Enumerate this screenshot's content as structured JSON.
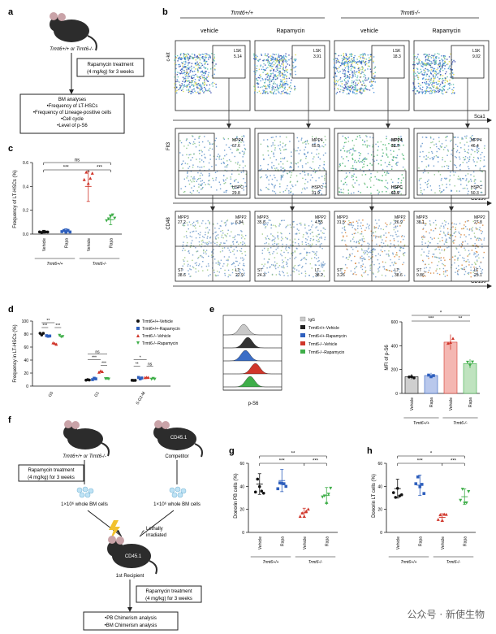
{
  "panel_labels": {
    "a": "a",
    "b": "b",
    "c": "c",
    "d": "d",
    "e": "e",
    "f": "f",
    "g": "g",
    "h": "h"
  },
  "panel_a": {
    "mouse_label": "Trmt6+/+ or Trmt6-/-",
    "treatment": [
      "Rapamycin treatment",
      "(4 mg/kg) for 3 weeks"
    ],
    "analyses": [
      "BM analyses",
      "•Frequency of LT-HSCs",
      "•Frequency of Lineage-positive cells",
      "•Cell cycle",
      "•Level of p-S6"
    ]
  },
  "panel_b": {
    "genotypes": [
      "Trmt6+/+",
      "Trmt6-/-"
    ],
    "conditions": [
      "vehicle",
      "Rapamycin",
      "vehicle",
      "Rapamycin"
    ],
    "row1": {
      "ylabel": "c-kit",
      "xlabel": "Sca1",
      "gate": "LSK",
      "values": [
        "5.14",
        "3.91",
        "18.3",
        "9.02"
      ]
    },
    "row2": {
      "ylabel": "Flt3",
      "xlabel": "CD150",
      "gates": [
        "MPP4",
        "HSPC"
      ],
      "mpp4": [
        "67.6",
        "65.9",
        "31.7",
        "46.4"
      ],
      "hspc": [
        "29.8",
        "31.9",
        "63.9",
        "50.3"
      ]
    },
    "row3": {
      "ylabel": "CD48",
      "xlabel": "CD150",
      "quad_names": [
        "MPP3",
        "MPP2",
        "ST",
        "LT"
      ],
      "values": [
        [
          "27.2",
          "6.34",
          "38.6",
          "22.9"
        ],
        [
          "35.8",
          "4.55",
          "24.3",
          "38.2"
        ],
        [
          "31.5",
          "26.9",
          "3.26",
          "38.6"
        ],
        [
          "38.1",
          "27.8",
          "9.86",
          "25.1"
        ]
      ]
    }
  },
  "colors": {
    "wt_vehicle": "#111111",
    "wt_rapa": "#2e5fbd",
    "ko_vehicle": "#d0362b",
    "ko_rapa": "#3fae49",
    "gray": "#b7b7b7"
  },
  "groups": {
    "wt": "Trmt6+/+",
    "ko": "Trmt6-/-",
    "vehicle": "Vehicle",
    "rapa": "Rapa"
  },
  "sig": {
    "ns": "ns",
    "s1": "*",
    "s2": "**",
    "s3": "***"
  },
  "panel_c": {
    "ylabel": "Frequency of LT-HSCs (%)",
    "chart_data": {
      "type": "scatter",
      "categories": [
        "Trmt6+/+ Vehicle",
        "Trmt6+/+ Rapa",
        "Trmt6-/- Vehicle",
        "Trmt6-/- Rapa"
      ],
      "means": [
        0.02,
        0.03,
        0.4,
        0.12
      ],
      "ylim": [
        0,
        0.6
      ],
      "yticks": [
        "0.0",
        "0.2",
        "0.4",
        "0.6"
      ]
    }
  },
  "panel_d": {
    "ylabel": "Frequency in LT-HSCs (%)",
    "legend": [
      "Trmt6+/+-Vehicle",
      "Trmt6+/+-Rapamycin",
      "Trmt6-/--Vehicle",
      "Trmt6-/--Rapamycin"
    ],
    "chart_data": {
      "type": "scatter",
      "categories": [
        "G0",
        "G1",
        "S-G2-M"
      ],
      "series": [
        {
          "name": "Trmt6+/+-Vehicle",
          "values": [
            80,
            10,
            10
          ]
        },
        {
          "name": "Trmt6+/+-Rapamycin",
          "values": [
            77,
            11,
            12
          ]
        },
        {
          "name": "Trmt6-/--Vehicle",
          "values": [
            65,
            22,
            13
          ]
        },
        {
          "name": "Trmt6-/--Rapamycin",
          "values": [
            77,
            11,
            12
          ]
        }
      ],
      "ylim": [
        0,
        100
      ],
      "yticks": [
        "0",
        "20",
        "40",
        "60",
        "80",
        "100"
      ]
    }
  },
  "panel_e": {
    "xlabel": "p-S6",
    "ylabel": "MFI of p-S6",
    "legend": [
      "IgG",
      "Trmt6+/+-Vehicle",
      "Trmt6+/+-Rapamycin",
      "Trmt6-/--Vehicle",
      "Trmt6-/--Rapamycin"
    ],
    "chart_data": {
      "type": "bar",
      "categories": [
        "Trmt6+/+ Vehicle",
        "Trmt6+/+ Rapa",
        "Trmt6-/- Vehicle",
        "Trmt6-/- Rapa"
      ],
      "values": [
        140,
        150,
        430,
        250
      ],
      "ylim": [
        0,
        600
      ],
      "yticks": [
        "0",
        "200",
        "400",
        "600"
      ]
    }
  },
  "panel_f": {
    "donor": "Trmt6+/+ or Trmt6-/-",
    "competitor": "Competitor",
    "cd45": "CD45.1",
    "treatment": [
      "Rapamycin treatment",
      "(4 mg/kg) for 3 weeks"
    ],
    "cells": "1×10⁶ whole BM cells",
    "irradiated": [
      "Lethally",
      "irradiated"
    ],
    "recipient": "1st Recipient",
    "treatment2": [
      "Rapamycin treatment",
      "(4 mg/kg) for 3 weeks"
    ],
    "analyses": [
      "•PB Chimerism analysis",
      "•BM Chimerism analysis"
    ]
  },
  "panel_g": {
    "ylabel": "Donorin PB cells (%)",
    "chart_data": {
      "type": "scatter",
      "categories": [
        "Trmt6+/+ Vehicle",
        "Trmt6+/+ Rapa",
        "Trmt6-/- Vehicle",
        "Trmt6-/- Rapa"
      ],
      "means": [
        42,
        45,
        17,
        32
      ],
      "ylim": [
        0,
        60
      ],
      "yticks": [
        "0",
        "20",
        "40",
        "60"
      ]
    }
  },
  "panel_h": {
    "ylabel": "Donorin LT cells (%)",
    "chart_data": {
      "type": "scatter",
      "categories": [
        "Trmt6+/+ Vehicle",
        "Trmt6+/+ Rapa",
        "Trmt6-/- Vehicle",
        "Trmt6-/- Rapa"
      ],
      "means": [
        38,
        41,
        13,
        31
      ],
      "ylim": [
        0,
        60
      ],
      "yticks": [
        "0",
        "20",
        "40",
        "60"
      ]
    }
  },
  "watermark": "公众号 · 新使生物"
}
